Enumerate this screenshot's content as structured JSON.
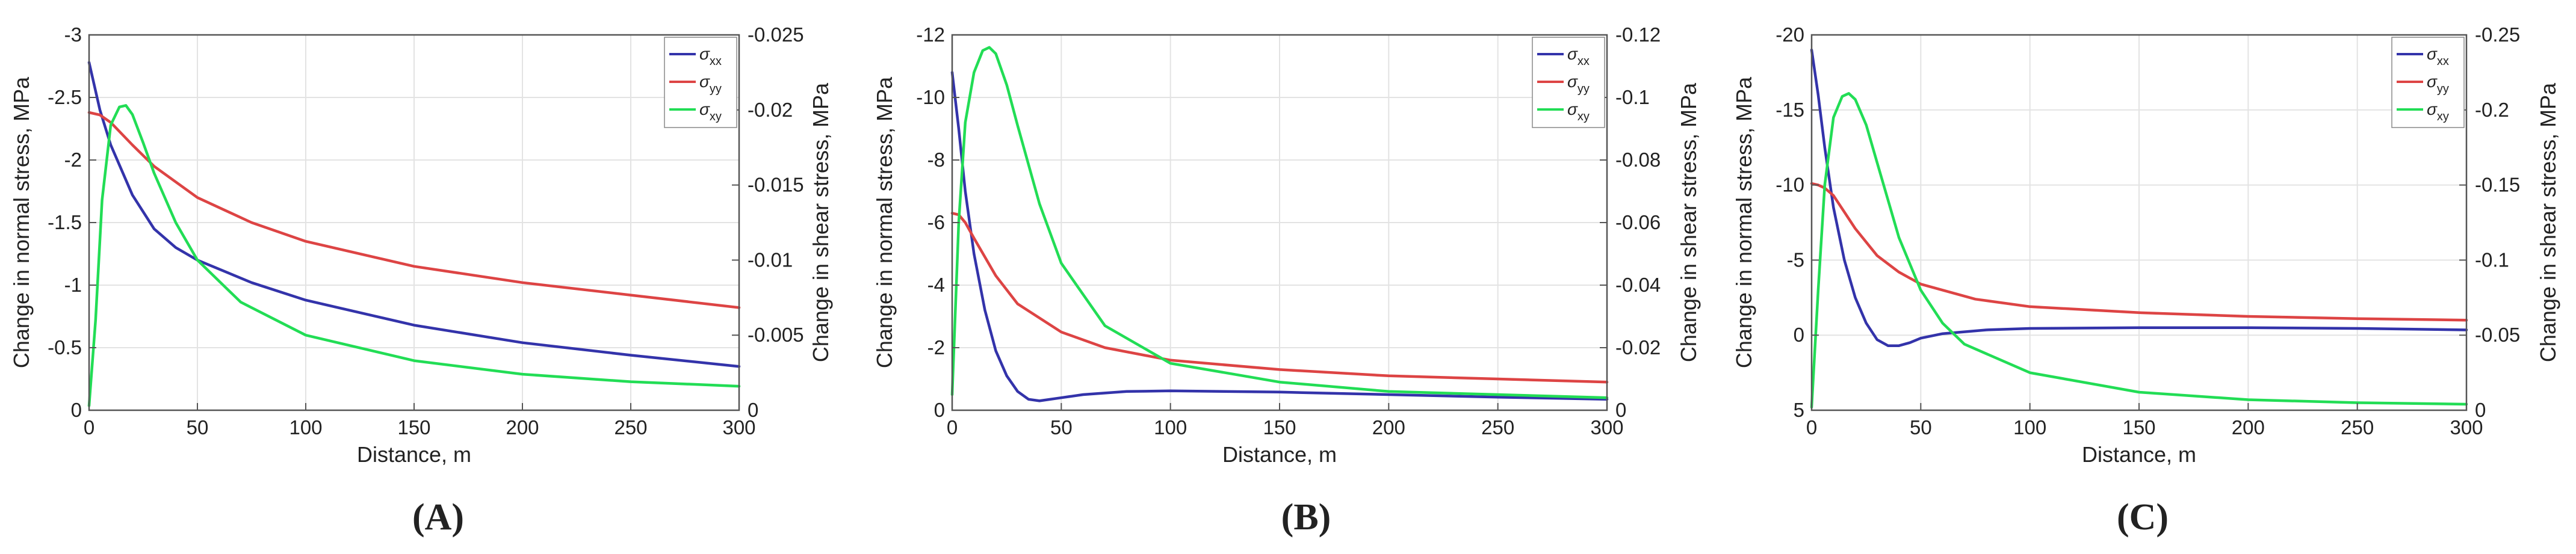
{
  "colors": {
    "xx": "#3333aa",
    "yy": "#dd4444",
    "xy": "#22dd55"
  },
  "chart_data": [
    {
      "type": "line",
      "panel_label": "(A)",
      "xlabel": "Distance, m",
      "ylabel_left": "Change in normal stress, MPa",
      "ylabel_right": "Change in shear stress, MPa",
      "xlim": [
        0,
        300
      ],
      "xticks": [
        0,
        50,
        100,
        150,
        200,
        250,
        300
      ],
      "xtick_labels": [
        "0",
        "50",
        "100",
        "150",
        "200",
        "250",
        "300"
      ],
      "ylim_left": [
        0,
        -3
      ],
      "yticks_left": [
        0,
        -0.5,
        -1,
        -1.5,
        -2,
        -2.5,
        -3
      ],
      "ytick_labels_left": [
        "0",
        "-0.5",
        "-1",
        "-1.5",
        "-2",
        "-2.5",
        "-3"
      ],
      "ylim_right": [
        0,
        -0.025
      ],
      "yticks_right": [
        0,
        -0.005,
        -0.01,
        -0.015,
        -0.02,
        -0.025
      ],
      "ytick_labels_right": [
        "0",
        "-0.005",
        "-0.01",
        "-0.015",
        "-0.02",
        "-0.025"
      ],
      "grid": true,
      "legend_position": "top-right",
      "legend": [
        {
          "sym": "σ",
          "sub": "xx"
        },
        {
          "sym": "σ",
          "sub": "yy"
        },
        {
          "sym": "σ",
          "sub": "xy"
        }
      ],
      "series": [
        {
          "key": "xx",
          "axis": "left",
          "x": [
            0,
            5,
            10,
            20,
            30,
            40,
            50,
            75,
            100,
            150,
            200,
            250,
            300
          ],
          "y": [
            -2.78,
            -2.4,
            -2.12,
            -1.72,
            -1.45,
            -1.3,
            -1.2,
            -1.02,
            -0.88,
            -0.68,
            -0.54,
            -0.44,
            -0.35
          ]
        },
        {
          "key": "yy",
          "axis": "left",
          "x": [
            0,
            5,
            10,
            20,
            30,
            50,
            75,
            100,
            150,
            200,
            250,
            300
          ],
          "y": [
            -2.38,
            -2.36,
            -2.3,
            -2.12,
            -1.95,
            -1.7,
            -1.5,
            -1.35,
            -1.15,
            -1.02,
            -0.92,
            -0.82
          ]
        },
        {
          "key": "xy",
          "axis": "right",
          "x": [
            0,
            3,
            6,
            10,
            14,
            17,
            20,
            25,
            30,
            40,
            50,
            70,
            100,
            150,
            200,
            250,
            300
          ],
          "y": [
            -0.0003,
            -0.006,
            -0.014,
            -0.019,
            -0.0202,
            -0.0203,
            -0.0197,
            -0.0178,
            -0.0158,
            -0.0125,
            -0.01,
            -0.0072,
            -0.005,
            -0.0033,
            -0.0024,
            -0.0019,
            -0.0016
          ]
        }
      ]
    },
    {
      "type": "line",
      "panel_label": "(B)",
      "xlabel": "Distance, m",
      "ylabel_left": "Change in normal stress, MPa",
      "ylabel_right": "Change in shear stress, MPa",
      "xlim": [
        0,
        300
      ],
      "xticks": [
        0,
        50,
        100,
        150,
        200,
        250,
        300
      ],
      "xtick_labels": [
        "0",
        "50",
        "100",
        "150",
        "200",
        "250",
        "300"
      ],
      "ylim_left": [
        0,
        -12
      ],
      "yticks_left": [
        0,
        -2,
        -4,
        -6,
        -8,
        -10,
        -12
      ],
      "ytick_labels_left": [
        "0",
        "-2",
        "-4",
        "-6",
        "-8",
        "-10",
        "-12"
      ],
      "ylim_right": [
        0,
        -0.12
      ],
      "yticks_right": [
        0,
        -0.02,
        -0.04,
        -0.06,
        -0.08,
        -0.1,
        -0.12
      ],
      "ytick_labels_right": [
        "0",
        "-0.02",
        "-0.04",
        "-0.06",
        "-0.08",
        "-0.1",
        "-0.12"
      ],
      "grid": true,
      "legend_position": "top-right",
      "legend": [
        {
          "sym": "σ",
          "sub": "xx"
        },
        {
          "sym": "σ",
          "sub": "yy"
        },
        {
          "sym": "σ",
          "sub": "xy"
        }
      ],
      "series": [
        {
          "key": "xx",
          "axis": "left",
          "x": [
            0,
            3,
            6,
            10,
            15,
            20,
            25,
            30,
            35,
            40,
            50,
            60,
            80,
            100,
            150,
            200,
            250,
            300
          ],
          "y": [
            -10.8,
            -9.0,
            -7.0,
            -5.0,
            -3.2,
            -1.9,
            -1.1,
            -0.6,
            -0.35,
            -0.3,
            -0.4,
            -0.5,
            -0.6,
            -0.62,
            -0.58,
            -0.5,
            -0.42,
            -0.35
          ]
        },
        {
          "key": "yy",
          "axis": "left",
          "x": [
            0,
            3,
            6,
            10,
            20,
            30,
            50,
            70,
            100,
            150,
            200,
            250,
            300
          ],
          "y": [
            -6.3,
            -6.25,
            -6.0,
            -5.5,
            -4.3,
            -3.4,
            -2.5,
            -2.0,
            -1.6,
            -1.3,
            -1.1,
            -1.0,
            -0.9
          ]
        },
        {
          "key": "xy",
          "axis": "right",
          "x": [
            0,
            3,
            6,
            10,
            14,
            17,
            20,
            25,
            30,
            40,
            50,
            70,
            100,
            150,
            200,
            250,
            300
          ],
          "y": [
            -0.005,
            -0.06,
            -0.092,
            -0.108,
            -0.115,
            -0.116,
            -0.114,
            -0.104,
            -0.091,
            -0.066,
            -0.047,
            -0.027,
            -0.015,
            -0.009,
            -0.006,
            -0.005,
            -0.004
          ]
        }
      ]
    },
    {
      "type": "line",
      "panel_label": "(C)",
      "xlabel": "Distance, m",
      "ylabel_left": "Change in normal stress, MPa",
      "ylabel_right": "Change in shear stress, MPa",
      "xlim": [
        0,
        300
      ],
      "xticks": [
        0,
        50,
        100,
        150,
        200,
        250,
        300
      ],
      "xtick_labels": [
        "0",
        "50",
        "100",
        "150",
        "200",
        "250",
        "300"
      ],
      "ylim_left": [
        5,
        -20
      ],
      "yticks_left": [
        5,
        0,
        -5,
        -10,
        -15,
        -20
      ],
      "ytick_labels_left": [
        "5",
        "0",
        "-5",
        "-10",
        "-15",
        "-20"
      ],
      "ylim_right": [
        0,
        -0.25
      ],
      "yticks_right": [
        0,
        -0.05,
        -0.1,
        -0.15,
        -0.2,
        -0.25
      ],
      "ytick_labels_right": [
        "0",
        "-0.05",
        "-0.1",
        "-0.15",
        "-0.2",
        "-0.25"
      ],
      "grid": true,
      "legend_position": "top-right",
      "legend": [
        {
          "sym": "σ",
          "sub": "xx"
        },
        {
          "sym": "σ",
          "sub": "yy"
        },
        {
          "sym": "σ",
          "sub": "xy"
        }
      ],
      "series": [
        {
          "key": "xx",
          "axis": "left",
          "x": [
            0,
            3,
            6,
            10,
            15,
            20,
            25,
            30,
            35,
            40,
            45,
            50,
            60,
            80,
            100,
            150,
            200,
            250,
            300
          ],
          "y": [
            -19,
            -16,
            -12.5,
            -8.5,
            -5,
            -2.5,
            -0.8,
            0.3,
            0.7,
            0.7,
            0.5,
            0.2,
            -0.1,
            -0.35,
            -0.45,
            -0.5,
            -0.5,
            -0.45,
            -0.35
          ]
        },
        {
          "key": "yy",
          "axis": "left",
          "x": [
            0,
            3,
            6,
            10,
            15,
            20,
            30,
            40,
            50,
            75,
            100,
            150,
            200,
            250,
            300
          ],
          "y": [
            -10.1,
            -10.0,
            -9.8,
            -9.3,
            -8.2,
            -7.1,
            -5.3,
            -4.2,
            -3.4,
            -2.4,
            -1.9,
            -1.5,
            -1.25,
            -1.1,
            -1.0
          ]
        },
        {
          "key": "xy",
          "axis": "right",
          "x": [
            0,
            3,
            6,
            10,
            14,
            17,
            20,
            25,
            30,
            40,
            50,
            60,
            70,
            100,
            150,
            200,
            250,
            300
          ],
          "y": [
            -0.002,
            -0.08,
            -0.15,
            -0.195,
            -0.209,
            -0.211,
            -0.207,
            -0.19,
            -0.165,
            -0.115,
            -0.08,
            -0.058,
            -0.044,
            -0.025,
            -0.012,
            -0.007,
            -0.005,
            -0.004
          ]
        }
      ]
    }
  ]
}
